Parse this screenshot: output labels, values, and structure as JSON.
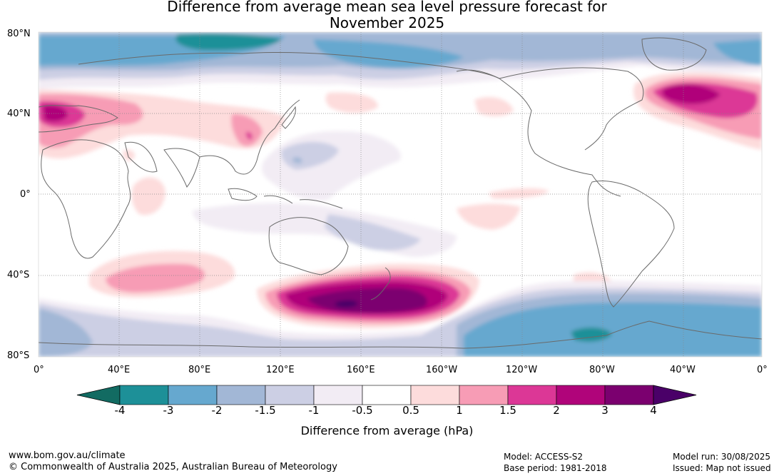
{
  "title_line1": "Difference from average mean sea level pressure forecast for",
  "title_line2": "November 2025",
  "lat_labels": [
    "80°N",
    "40°N",
    "0°",
    "40°S",
    "80°S"
  ],
  "lon_labels": [
    "0°",
    "40°E",
    "80°E",
    "120°E",
    "160°E",
    "160°W",
    "120°W",
    "80°W",
    "40°W",
    "0°"
  ],
  "colorbar": {
    "title": "Difference from average (hPa)",
    "ticks": [
      "-4",
      "-3",
      "-2",
      "-1.5",
      "-1",
      "-0.5",
      "0.5",
      "1",
      "1.5",
      "2",
      "3",
      "4"
    ],
    "colors": [
      "#126b62",
      "#1d9098",
      "#66a8cf",
      "#a2b7d6",
      "#cccfe4",
      "#f2ecf4",
      "#ffffff",
      "#fddcdc",
      "#f79cb5",
      "#dc3796",
      "#b0047a",
      "#7b006f",
      "#4a0068"
    ]
  },
  "footer": {
    "url": "www.bom.gov.au/climate",
    "copyright": "© Commonwealth of Australia 2025, Australian Bureau of Meteorology",
    "model": "Model: ACCESS-S2",
    "base_period": "Base period: 1981-2018",
    "model_run": "Model run: 30/08/2025",
    "issued": "Issued: Map not issued"
  }
}
